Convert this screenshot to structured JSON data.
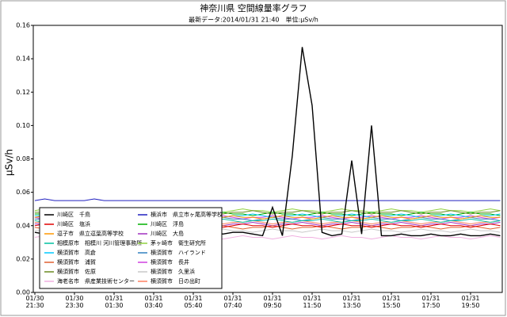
{
  "chart_data": {
    "type": "line",
    "title": "神奈川県 空間線量率グラフ",
    "subtitle": "最新データ:2014/01/31 21:40　単位:μSv/h",
    "y_label": "μSv/h",
    "ylim": [
      0,
      0.16
    ],
    "yticks": [
      {
        "value": 0,
        "label": "0.00"
      },
      0.02,
      0.04,
      0.06,
      0.08,
      {
        "value": 0.1,
        "label": "0.10"
      },
      0.12,
      0.14,
      0.16
    ],
    "grid": false,
    "legend": "lower left",
    "categories": [
      "01/30\n21:30",
      null,
      null,
      null,
      "01/30\n23:30",
      null,
      null,
      null,
      "01/31\n01:30",
      null,
      null,
      null,
      "01/31\n03:40",
      null,
      null,
      null,
      "01/31\n05:40",
      null,
      null,
      null,
      "01/31\n07:40",
      null,
      null,
      null,
      "01/31\n09:50",
      null,
      null,
      null,
      "01/31\n11:50",
      null,
      null,
      null,
      "01/31\n13:50",
      null,
      null,
      null,
      "01/31\n15:50",
      null,
      null,
      null,
      "01/31\n17:50",
      null,
      null,
      null,
      "01/31\n19:50",
      null,
      null,
      null
    ],
    "series": [
      {
        "name": "川崎区　千鳥",
        "color": "#000000",
        "values": [
          0.036,
          0.035,
          0.036,
          0.036,
          0.035,
          0.036,
          0.036,
          0.035,
          0.036,
          0.036,
          0.035,
          0.036,
          0.036,
          0.035,
          0.036,
          0.036,
          0.035,
          0.036,
          0.036,
          0.035,
          0.036,
          0.036,
          0.035,
          0.034,
          0.051,
          0.034,
          0.082,
          0.147,
          0.112,
          0.036,
          0.034,
          0.035,
          0.079,
          0.035,
          0.1,
          0.034,
          0.034,
          0.035,
          0.034,
          0.034,
          0.035,
          0.034,
          0.034,
          0.035,
          0.034,
          0.034,
          0.035,
          0.034
        ]
      },
      {
        "name": "川崎区　塩浜",
        "color": "#e00000",
        "values": [
          0.04,
          0.041,
          0.04,
          0.04,
          0.039,
          0.04,
          0.041,
          0.04,
          0.04,
          0.039,
          0.04,
          0.041,
          0.04,
          0.04,
          0.039,
          0.04,
          0.041,
          0.04,
          0.04,
          0.039,
          0.04,
          0.041,
          0.04,
          0.04,
          0.039,
          0.04,
          0.041,
          0.04,
          0.04,
          0.039,
          0.04,
          0.041,
          0.04,
          0.04,
          0.039,
          0.04,
          0.041,
          0.04,
          0.04,
          0.039,
          0.04,
          0.041,
          0.04,
          0.04,
          0.039,
          0.04,
          0.041,
          0.04
        ]
      },
      {
        "name": "逗子市　県立逗葉高等学校",
        "color": "#ff9900",
        "values": [
          0.045,
          0.046,
          0.045,
          0.044,
          0.045,
          0.046,
          0.045,
          0.045,
          0.044,
          0.045,
          0.046,
          0.045,
          0.045,
          0.044,
          0.045,
          0.046,
          0.045,
          0.045,
          0.044,
          0.045,
          0.046,
          0.045,
          0.045,
          0.044,
          0.045,
          0.046,
          0.045,
          0.045,
          0.044,
          0.045,
          0.046,
          0.045,
          0.045,
          0.044,
          0.045,
          0.046,
          0.045,
          0.045,
          0.044,
          0.045,
          0.046,
          0.045,
          0.045,
          0.044,
          0.045,
          0.046,
          0.045,
          0.045
        ]
      },
      {
        "name": "相模原市　相模川 河川管理事務所",
        "color": "#00c0a0",
        "values": [
          0.043,
          0.042,
          0.043,
          0.043,
          0.044,
          0.043,
          0.042,
          0.043,
          0.043,
          0.044,
          0.043,
          0.042,
          0.043,
          0.043,
          0.044,
          0.043,
          0.042,
          0.043,
          0.043,
          0.044,
          0.043,
          0.042,
          0.043,
          0.043,
          0.044,
          0.043,
          0.042,
          0.043,
          0.043,
          0.044,
          0.043,
          0.042,
          0.043,
          0.043,
          0.044,
          0.043,
          0.042,
          0.043,
          0.043,
          0.044,
          0.043,
          0.042,
          0.043,
          0.043,
          0.044,
          0.043,
          0.042,
          0.043
        ]
      },
      {
        "name": "横須賀市　高倉",
        "color": "#00c8ff",
        "values": [
          0.046,
          0.046,
          0.047,
          0.046,
          0.045,
          0.046,
          0.046,
          0.047,
          0.046,
          0.045,
          0.046,
          0.046,
          0.047,
          0.046,
          0.045,
          0.046,
          0.046,
          0.047,
          0.046,
          0.045,
          0.046,
          0.046,
          0.047,
          0.046,
          0.045,
          0.046,
          0.046,
          0.047,
          0.046,
          0.045,
          0.046,
          0.046,
          0.047,
          0.046,
          0.045,
          0.046,
          0.046,
          0.047,
          0.046,
          0.045,
          0.046,
          0.046,
          0.047,
          0.046,
          0.045,
          0.046,
          0.046,
          0.047
        ]
      },
      {
        "name": "横須賀市　浦賀",
        "color": "#e06030",
        "values": [
          0.039,
          0.038,
          0.039,
          0.039,
          0.04,
          0.039,
          0.038,
          0.039,
          0.039,
          0.04,
          0.039,
          0.038,
          0.039,
          0.039,
          0.04,
          0.039,
          0.038,
          0.039,
          0.039,
          0.04,
          0.039,
          0.038,
          0.039,
          0.039,
          0.04,
          0.039,
          0.038,
          0.039,
          0.039,
          0.04,
          0.039,
          0.038,
          0.039,
          0.039,
          0.04,
          0.039,
          0.038,
          0.039,
          0.039,
          0.04,
          0.039,
          0.038,
          0.039,
          0.039,
          0.04,
          0.039,
          0.038,
          0.039
        ]
      },
      {
        "name": "横須賀市　佐原",
        "color": "#6a8a20",
        "values": [
          0.048,
          0.048,
          0.049,
          0.048,
          0.047,
          0.048,
          0.048,
          0.049,
          0.048,
          0.047,
          0.048,
          0.048,
          0.049,
          0.048,
          0.047,
          0.048,
          0.048,
          0.049,
          0.048,
          0.047,
          0.048,
          0.048,
          0.049,
          0.048,
          0.047,
          0.048,
          0.048,
          0.049,
          0.048,
          0.047,
          0.048,
          0.048,
          0.049,
          0.048,
          0.047,
          0.048,
          0.048,
          0.049,
          0.048,
          0.047,
          0.048,
          0.048,
          0.049,
          0.048,
          0.047,
          0.048,
          0.048,
          0.049
        ]
      },
      {
        "name": "海老名市　県産業技術センター",
        "color": "#f0b0e0",
        "values": [
          0.033,
          0.034,
          0.033,
          0.033,
          0.032,
          0.033,
          0.034,
          0.033,
          0.033,
          0.032,
          0.033,
          0.034,
          0.033,
          0.033,
          0.032,
          0.033,
          0.034,
          0.033,
          0.033,
          0.032,
          0.033,
          0.034,
          0.033,
          0.033,
          0.032,
          0.033,
          0.034,
          0.033,
          0.033,
          0.032,
          0.033,
          0.034,
          0.033,
          0.033,
          0.032,
          0.033,
          0.034,
          0.033,
          0.033,
          0.032,
          0.033,
          0.034,
          0.033,
          0.033,
          0.032,
          0.033,
          0.034,
          0.033
        ]
      },
      {
        "name": "横浜市　県立市ヶ尾高等学校",
        "color": "#2020c0",
        "values": [
          0.055,
          0.056,
          0.055,
          0.055,
          0.055,
          0.055,
          0.056,
          0.055,
          0.055,
          0.055,
          0.055,
          0.055,
          0.055,
          0.055,
          0.055,
          0.055,
          0.055,
          0.055,
          0.055,
          0.055,
          0.055,
          0.055,
          0.055,
          0.055,
          0.055,
          0.055,
          0.055,
          0.055,
          0.055,
          0.055,
          0.055,
          0.055,
          0.055,
          0.055,
          0.055,
          0.055,
          0.055,
          0.055,
          0.055,
          0.055,
          0.055,
          0.055,
          0.055,
          0.055,
          0.055,
          0.055,
          0.055,
          0.055
        ]
      },
      {
        "name": "川崎区　浮島",
        "color": "#00b000",
        "values": [
          0.047,
          0.047,
          0.046,
          0.047,
          0.048,
          0.047,
          0.047,
          0.046,
          0.047,
          0.048,
          0.047,
          0.047,
          0.046,
          0.047,
          0.048,
          0.047,
          0.047,
          0.046,
          0.047,
          0.048,
          0.047,
          0.047,
          0.046,
          0.047,
          0.048,
          0.047,
          0.047,
          0.046,
          0.047,
          0.048,
          0.047,
          0.047,
          0.046,
          0.047,
          0.048,
          0.047,
          0.047,
          0.046,
          0.047,
          0.048,
          0.047,
          0.047,
          0.046,
          0.047,
          0.048,
          0.047,
          0.047,
          0.046
        ]
      },
      {
        "name": "川崎区　大島",
        "color": "#a030c0",
        "values": [
          0.041,
          0.041,
          0.042,
          0.041,
          0.04,
          0.041,
          0.041,
          0.042,
          0.041,
          0.04,
          0.041,
          0.041,
          0.042,
          0.041,
          0.04,
          0.041,
          0.041,
          0.042,
          0.041,
          0.04,
          0.041,
          0.041,
          0.042,
          0.041,
          0.04,
          0.041,
          0.041,
          0.042,
          0.041,
          0.04,
          0.041,
          0.041,
          0.042,
          0.041,
          0.04,
          0.041,
          0.041,
          0.042,
          0.041,
          0.04,
          0.041,
          0.041,
          0.042,
          0.041,
          0.04,
          0.041,
          0.041,
          0.042
        ]
      },
      {
        "name": "茅ヶ崎市　衛生研究所",
        "color": "#90d040",
        "values": [
          0.049,
          0.05,
          0.049,
          0.049,
          0.048,
          0.049,
          0.05,
          0.049,
          0.049,
          0.048,
          0.049,
          0.05,
          0.049,
          0.049,
          0.048,
          0.049,
          0.05,
          0.049,
          0.049,
          0.048,
          0.049,
          0.05,
          0.049,
          0.049,
          0.048,
          0.049,
          0.05,
          0.049,
          0.049,
          0.048,
          0.049,
          0.05,
          0.049,
          0.049,
          0.048,
          0.049,
          0.05,
          0.049,
          0.049,
          0.048,
          0.049,
          0.05,
          0.049,
          0.049,
          0.048,
          0.049,
          0.05,
          0.049
        ]
      },
      {
        "name": "横須賀市　ハイランド",
        "color": "#3080c0",
        "values": [
          0.044,
          0.044,
          0.043,
          0.044,
          0.045,
          0.044,
          0.044,
          0.043,
          0.044,
          0.045,
          0.044,
          0.044,
          0.043,
          0.044,
          0.045,
          0.044,
          0.044,
          0.043,
          0.044,
          0.045,
          0.044,
          0.044,
          0.043,
          0.044,
          0.045,
          0.044,
          0.044,
          0.043,
          0.044,
          0.045,
          0.044,
          0.044,
          0.043,
          0.044,
          0.045,
          0.044,
          0.044,
          0.043,
          0.044,
          0.045,
          0.044,
          0.044,
          0.043,
          0.044,
          0.045,
          0.044,
          0.044,
          0.043
        ]
      },
      {
        "name": "横須賀市　長井",
        "color": "#d040e0",
        "values": [
          0.045,
          0.044,
          0.045,
          0.045,
          0.046,
          0.045,
          0.044,
          0.045,
          0.045,
          0.046,
          0.045,
          0.044,
          0.045,
          0.045,
          0.046,
          0.045,
          0.044,
          0.045,
          0.045,
          0.046,
          0.045,
          0.044,
          0.045,
          0.045,
          0.046,
          0.045,
          0.044,
          0.045,
          0.045,
          0.046,
          0.045,
          0.044,
          0.045,
          0.045,
          0.046,
          0.045,
          0.044,
          0.045,
          0.045,
          0.046,
          0.045,
          0.044,
          0.045,
          0.045,
          0.046,
          0.045,
          0.044,
          0.045
        ]
      },
      {
        "name": "横須賀市　久里浜",
        "color": "#c8c8c8",
        "values": [
          0.037,
          0.037,
          0.036,
          0.037,
          0.038,
          0.037,
          0.037,
          0.036,
          0.037,
          0.038,
          0.037,
          0.037,
          0.036,
          0.037,
          0.038,
          0.037,
          0.037,
          0.036,
          0.037,
          0.038,
          0.037,
          0.037,
          0.036,
          0.037,
          0.038,
          0.037,
          0.037,
          0.036,
          0.037,
          0.038,
          0.037,
          0.037,
          0.036,
          0.037,
          0.038,
          0.037,
          0.037,
          0.036,
          0.037,
          0.038,
          0.037,
          0.037,
          0.036,
          0.037,
          0.038,
          0.037,
          0.037,
          0.036
        ]
      },
      {
        "name": "横須賀市　日の出町",
        "color": "#ff8060",
        "values": [
          0.042,
          0.042,
          0.043,
          0.042,
          0.041,
          0.042,
          0.042,
          0.043,
          0.042,
          0.041,
          0.042,
          0.042,
          0.043,
          0.042,
          0.041,
          0.042,
          0.042,
          0.043,
          0.042,
          0.041,
          0.042,
          0.042,
          0.043,
          0.042,
          0.041,
          0.042,
          0.042,
          0.043,
          0.042,
          0.041,
          0.042,
          0.042,
          0.043,
          0.042,
          0.041,
          0.042,
          0.042,
          0.043,
          0.042,
          0.041,
          0.042,
          0.042,
          0.043,
          0.042,
          0.041,
          0.042,
          0.042,
          0.043
        ]
      }
    ]
  }
}
